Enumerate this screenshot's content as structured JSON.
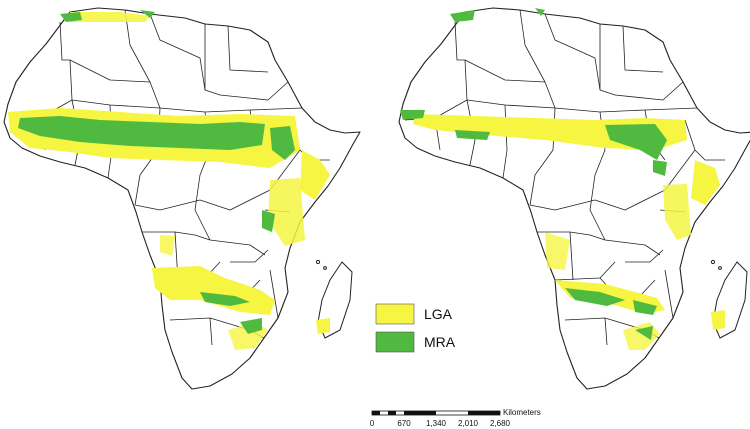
{
  "legend": {
    "items": [
      {
        "label": "LGA",
        "color": "#f5f542"
      },
      {
        "label": "MRA",
        "color": "#4fba3f"
      }
    ]
  },
  "scale_bar": {
    "unit": "Kilometers",
    "ticks": [
      "0",
      "670",
      "1,340",
      "2,010",
      "2,680"
    ]
  },
  "maps": [
    {
      "name": "left-africa-map"
    },
    {
      "name": "right-africa-map"
    }
  ]
}
